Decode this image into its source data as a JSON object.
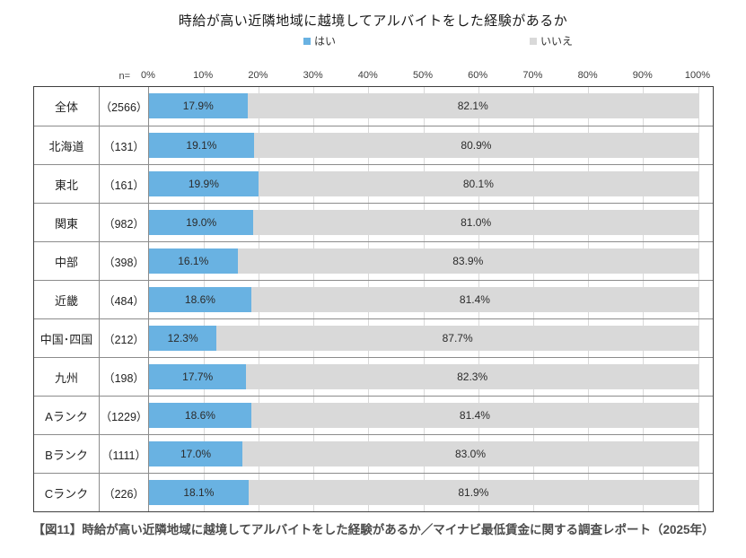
{
  "labels": {
    "n_equals": "n="
  },
  "caption": "【図11】時給が高い近隣地域に越境してアルバイトをした経験があるか／マイナビ最低賃金に関する調査レポート（2025年）",
  "colors": {
    "yes_bar": "#69B2E2",
    "no_bar": "#D9D9D9",
    "gridline": "#D9D9D9",
    "table_border": "#3F3F3F",
    "inner_line": "#8C8C8C"
  },
  "chart_data": {
    "type": "bar",
    "orientation": "horizontal",
    "stacked": true,
    "title": "時給が高い近隣地域に越境してアルバイトをした経験があるか",
    "xlabel": "",
    "ylabel": "",
    "xlim": [
      0,
      100
    ],
    "grid": true,
    "legend_position": "top",
    "x_ticks": [
      "0%",
      "10%",
      "20%",
      "30%",
      "40%",
      "50%",
      "60%",
      "70%",
      "80%",
      "90%",
      "100%"
    ],
    "categories": [
      "全体",
      "北海道",
      "東北",
      "関東",
      "中部",
      "近畿",
      "中国･四国",
      "九州",
      "Aランク",
      "Bランク",
      "Cランク"
    ],
    "n_values": [
      2566,
      131,
      161,
      982,
      398,
      484,
      212,
      198,
      1229,
      1111,
      226
    ],
    "n_display": [
      "（2566）",
      "（131）",
      "（161）",
      "（982）",
      "（398）",
      "（484）",
      "（212）",
      "（198）",
      "（1229）",
      "（1111）",
      "（226）"
    ],
    "series": [
      {
        "name": "はい",
        "color": "#69B2E2",
        "values": [
          17.9,
          19.1,
          19.9,
          19.0,
          16.1,
          18.6,
          12.3,
          17.7,
          18.6,
          17.0,
          18.1
        ]
      },
      {
        "name": "いいえ",
        "color": "#D9D9D9",
        "values": [
          82.1,
          80.9,
          80.1,
          81.0,
          83.9,
          81.4,
          87.7,
          82.3,
          81.4,
          83.0,
          81.9
        ]
      }
    ]
  }
}
